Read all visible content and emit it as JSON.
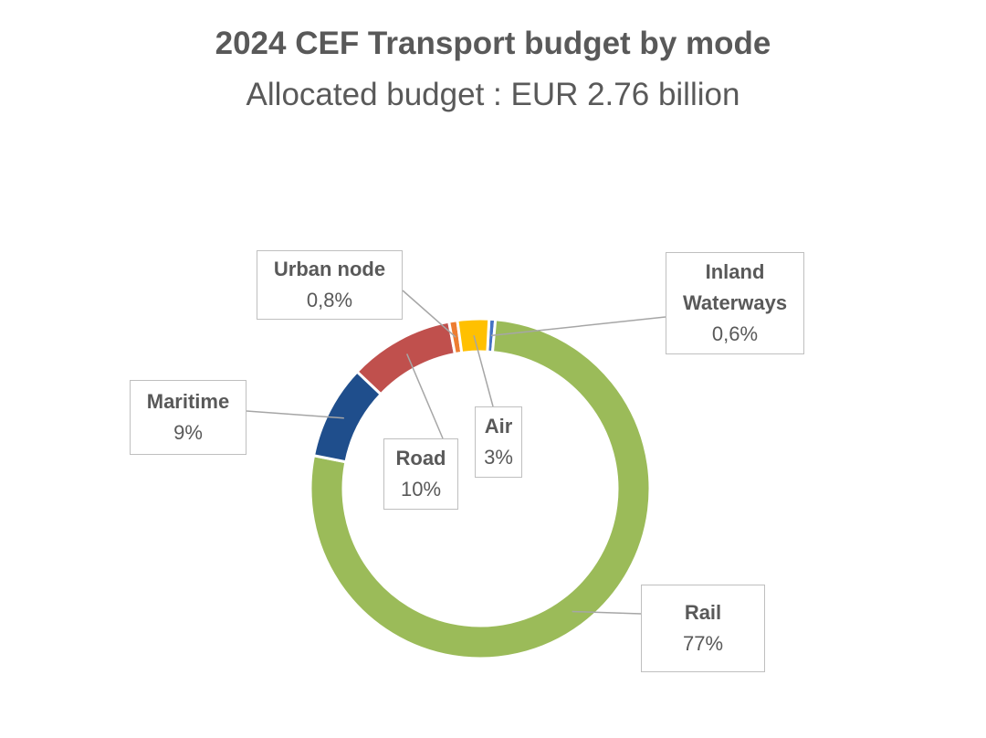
{
  "chart_data": {
    "type": "pie",
    "variant": "donut",
    "title": "2024 CEF Transport budget by mode",
    "subtitle": "Allocated budget : EUR 2.76 billion",
    "slices": [
      {
        "name": "Inland Waterways",
        "label": "Inland\nWaterways",
        "value": 0.6,
        "value_label": "0,6%",
        "color": "#4472C4"
      },
      {
        "name": "Rail",
        "label": "Rail",
        "value": 77,
        "value_label": "77%",
        "color": "#9BBB59"
      },
      {
        "name": "Maritime",
        "label": "Maritime",
        "value": 9,
        "value_label": "9%",
        "color": "#1F4E8C"
      },
      {
        "name": "Road",
        "label": "Road",
        "value": 10,
        "value_label": "10%",
        "color": "#C0504D"
      },
      {
        "name": "Urban node",
        "label": "Urban node",
        "value": 0.8,
        "value_label": "0,8%",
        "color": "#ED7D31"
      },
      {
        "name": "Air",
        "label": "Air",
        "value": 3,
        "value_label": "3%",
        "color": "#FFC000"
      }
    ],
    "legend": "none",
    "data_labels": "callouts"
  }
}
